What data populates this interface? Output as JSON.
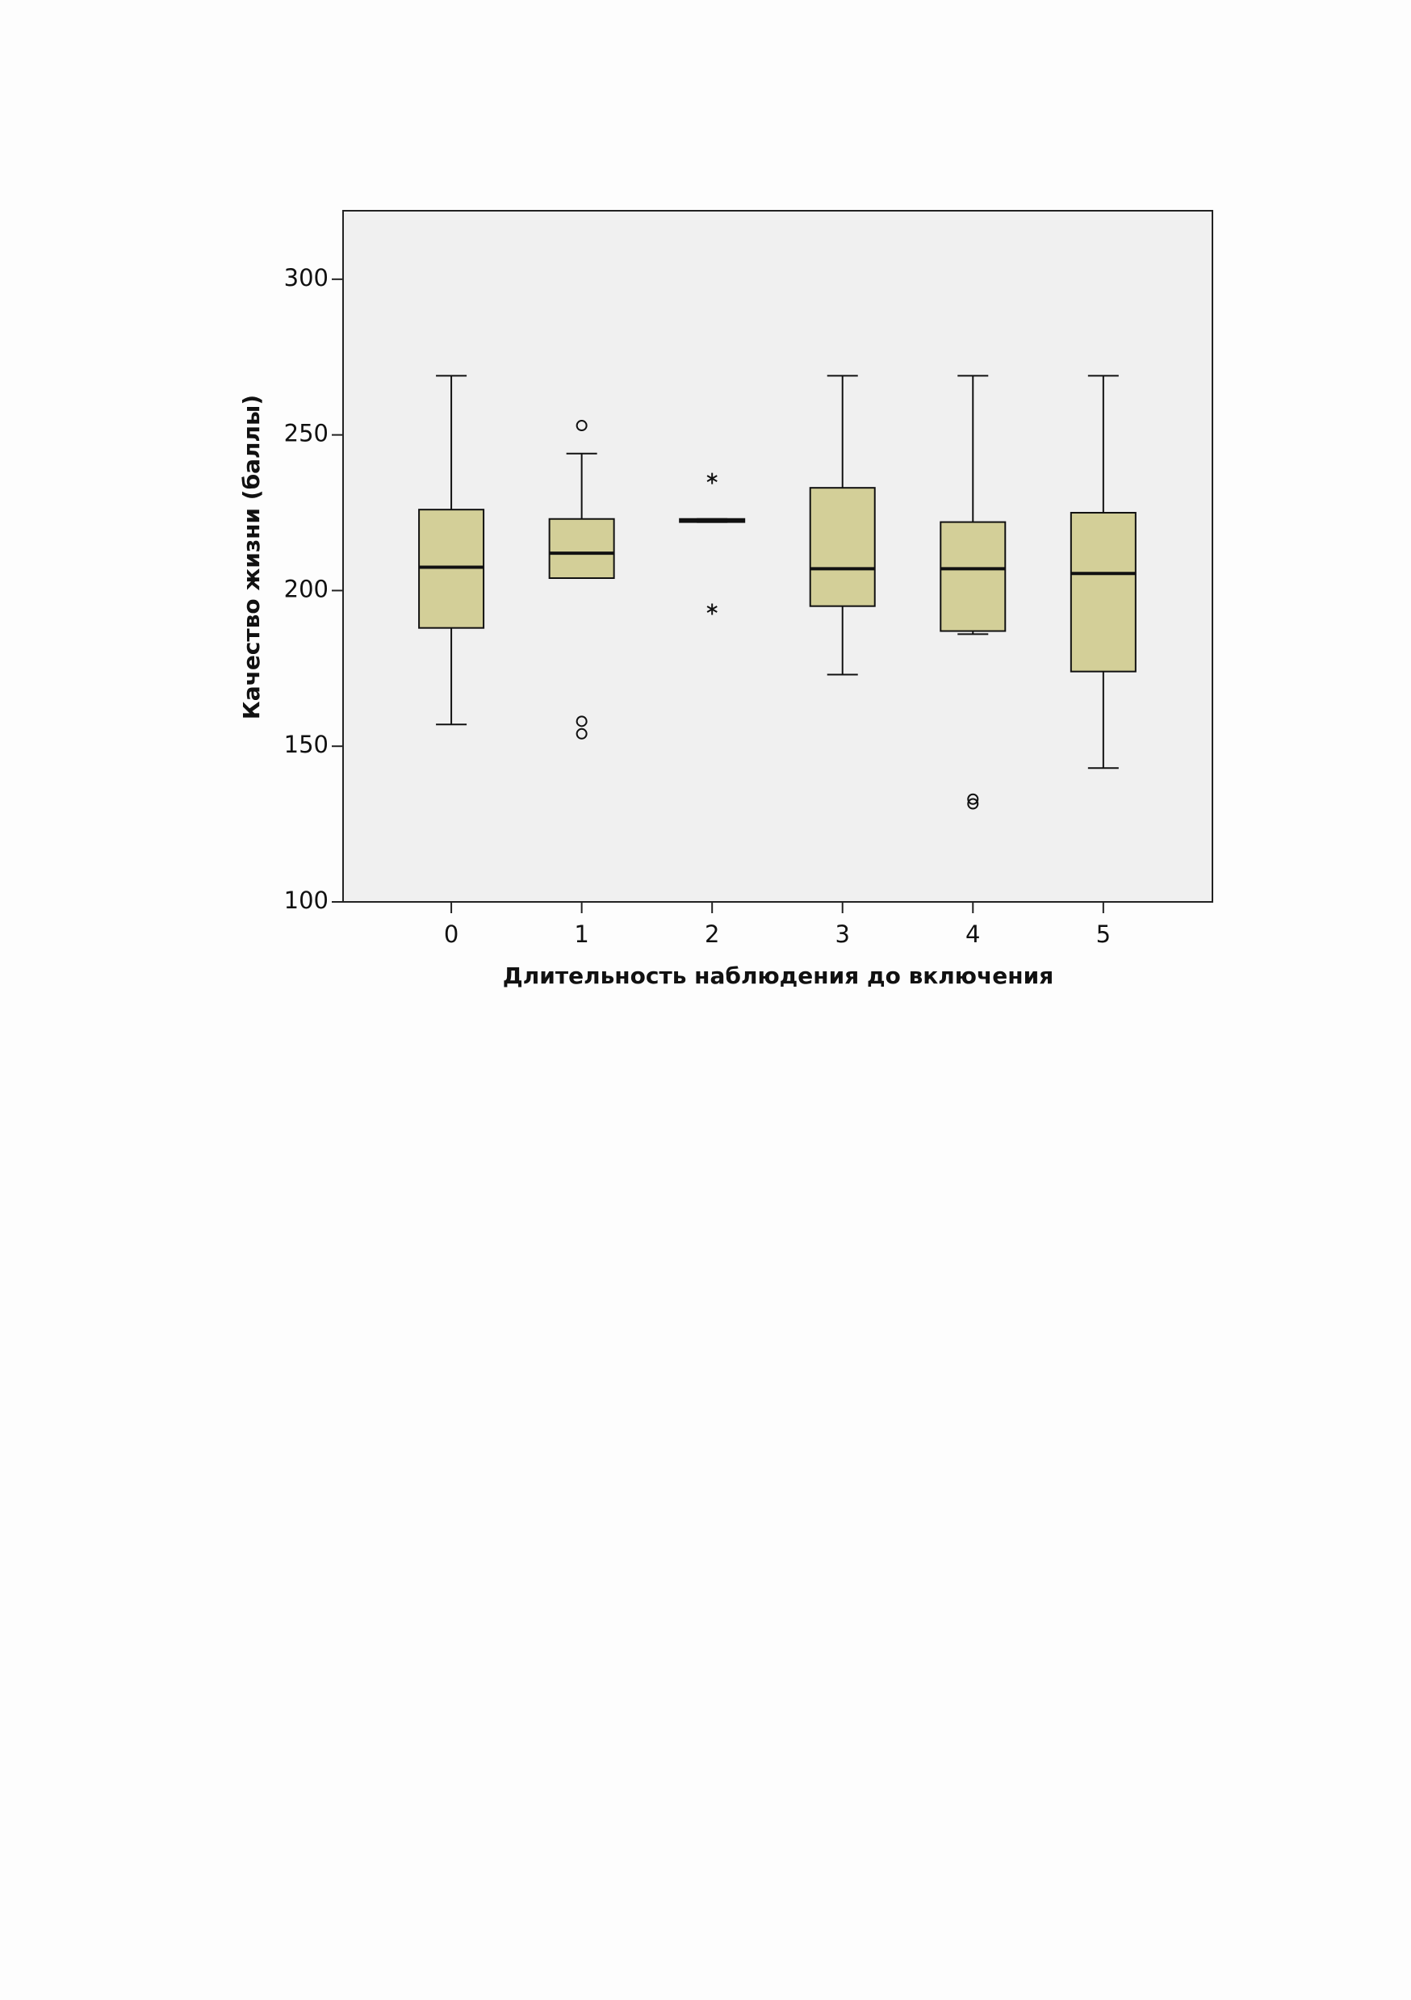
{
  "chart_data": {
    "type": "box",
    "x_label": "Длительность наблюдения до включения",
    "y_label": "Качество жизни (баллы)",
    "categories": [
      "0",
      "1",
      "2",
      "3",
      "4",
      "5"
    ],
    "color": "#d3cf98",
    "boxes": [
      {
        "min": 157,
        "q1": 188,
        "median": 207.5,
        "q3": 226,
        "max": 269,
        "outliers": [],
        "extremes": []
      },
      {
        "min": 204,
        "q1": 204,
        "median": 212,
        "q3": 223,
        "max": 244,
        "outliers": [
          253,
          158,
          154
        ],
        "extremes": []
      },
      {
        "min": 222,
        "q1": 222,
        "median": 222.5,
        "q3": 223,
        "max": 223,
        "outliers": [],
        "extremes": [
          236,
          194
        ]
      },
      {
        "min": 173,
        "q1": 195,
        "median": 207,
        "q3": 233,
        "max": 269,
        "outliers": [],
        "extremes": []
      },
      {
        "min": 186,
        "q1": 187,
        "median": 207,
        "q3": 222,
        "max": 269,
        "outliers": [
          133,
          131.5
        ],
        "extremes": []
      },
      {
        "min": 143,
        "q1": 174,
        "median": 205.5,
        "q3": 225,
        "max": 269,
        "outliers": [],
        "extremes": []
      }
    ],
    "ylim": [
      100,
      322
    ],
    "yticks": [
      100,
      150,
      200,
      250,
      300
    ]
  }
}
